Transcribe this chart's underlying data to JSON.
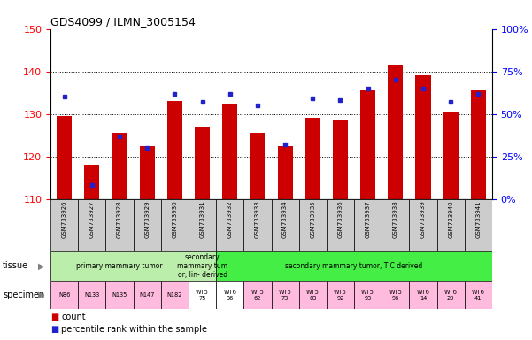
{
  "title": "GDS4099 / ILMN_3005154",
  "samples": [
    "GSM733926",
    "GSM733927",
    "GSM733928",
    "GSM733929",
    "GSM733930",
    "GSM733931",
    "GSM733932",
    "GSM733933",
    "GSM733934",
    "GSM733935",
    "GSM733936",
    "GSM733937",
    "GSM733938",
    "GSM733939",
    "GSM733940",
    "GSM733941"
  ],
  "count_values": [
    129.5,
    118.0,
    125.5,
    122.5,
    133.0,
    127.0,
    132.5,
    125.5,
    122.5,
    129.0,
    128.5,
    135.5,
    141.5,
    139.0,
    130.5,
    135.5
  ],
  "percentile_values": [
    60,
    8,
    37,
    30,
    62,
    57,
    62,
    55,
    32,
    59,
    58,
    65,
    70,
    65,
    57,
    62
  ],
  "ylim_left": [
    110,
    150
  ],
  "ylim_right": [
    0,
    100
  ],
  "bar_color": "#cc0000",
  "dot_color": "#2222cc",
  "base_value": 110,
  "tissue_groups": [
    {
      "span": [
        0,
        5
      ],
      "label": "primary mammary tumor",
      "color": "#bbeeaa"
    },
    {
      "span": [
        5,
        6
      ],
      "label": "secondary\nmammary tum\nor, lin- derived",
      "color": "#bbeeaa"
    },
    {
      "span": [
        6,
        16
      ],
      "label": "secondary mammary tumor, TIC derived",
      "color": "#44ee44"
    }
  ],
  "specimen_labels": [
    "N86",
    "N133",
    "N135",
    "N147",
    "N182",
    "WT5\n75",
    "WT6\n36",
    "WT5\n62",
    "WT5\n73",
    "WT5\n83",
    "WT5\n92",
    "WT5\n93",
    "WT5\n96",
    "WT6\n14",
    "WT6\n20",
    "WT6\n41"
  ],
  "specimen_colors": [
    "#ffbbdd",
    "#ffbbdd",
    "#ffbbdd",
    "#ffbbdd",
    "#ffbbdd",
    "#ffffff",
    "#ffffff",
    "#ffbbdd",
    "#ffbbdd",
    "#ffbbdd",
    "#ffbbdd",
    "#ffbbdd",
    "#ffbbdd",
    "#ffbbdd",
    "#ffbbdd",
    "#ffbbdd"
  ],
  "sample_box_color": "#cccccc",
  "legend_count_color": "#cc0000",
  "legend_dot_color": "#2222cc"
}
